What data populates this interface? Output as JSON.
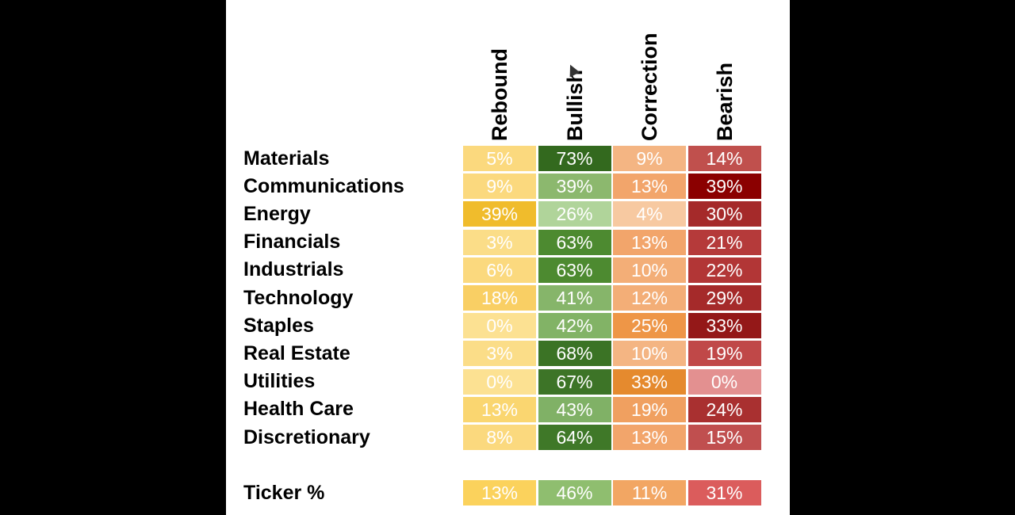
{
  "chart_data": {
    "type": "heatmap",
    "title": "",
    "columns": [
      "Rebound",
      "Bullish",
      "Correction",
      "Bearish"
    ],
    "rows": [
      {
        "label": "Materials",
        "values": [
          "5%",
          "73%",
          "9%",
          "14%"
        ]
      },
      {
        "label": "Communications",
        "values": [
          "9%",
          "39%",
          "13%",
          "39%"
        ]
      },
      {
        "label": "Energy",
        "values": [
          "39%",
          "26%",
          "4%",
          "30%"
        ]
      },
      {
        "label": "Financials",
        "values": [
          "3%",
          "63%",
          "13%",
          "21%"
        ]
      },
      {
        "label": "Industrials",
        "values": [
          "6%",
          "63%",
          "10%",
          "22%"
        ]
      },
      {
        "label": "Technology",
        "values": [
          "18%",
          "41%",
          "12%",
          "29%"
        ]
      },
      {
        "label": "Staples",
        "values": [
          "0%",
          "42%",
          "25%",
          "33%"
        ]
      },
      {
        "label": "Real Estate",
        "values": [
          "3%",
          "68%",
          "10%",
          "19%"
        ]
      },
      {
        "label": "Utilities",
        "values": [
          "0%",
          "67%",
          "33%",
          "0%"
        ]
      },
      {
        "label": "Health Care",
        "values": [
          "13%",
          "43%",
          "19%",
          "24%"
        ]
      },
      {
        "label": "Discretionary",
        "values": [
          "8%",
          "64%",
          "13%",
          "15%"
        ]
      }
    ],
    "summary_rows": [
      {
        "label": "Ticker %",
        "values": [
          "13%",
          "46%",
          "11%",
          "31%"
        ]
      }
    ],
    "cell_colors": [
      [
        "#fbd97e",
        "#33691e",
        "#f4b583",
        "#c0504d"
      ],
      [
        "#fbd97e",
        "#8cb86e",
        "#f2a56b",
        "#8b0000"
      ],
      [
        "#f0bc2c",
        "#b0d49a",
        "#f7c9a1",
        "#a52a2a"
      ],
      [
        "#fbdd88",
        "#4d8a30",
        "#f2a56b",
        "#b53a3a"
      ],
      [
        "#fbd97e",
        "#4d8a30",
        "#f3ae77",
        "#b23636"
      ],
      [
        "#f9cf64",
        "#86b56a",
        "#f3ae77",
        "#a52a2a"
      ],
      [
        "#fce192",
        "#82b366",
        "#ee9647",
        "#941818"
      ],
      [
        "#fbdd88",
        "#3b7325",
        "#f4b583",
        "#c04848"
      ],
      [
        "#fce192",
        "#3d7427",
        "#e58a2e",
        "#e39090"
      ],
      [
        "#fad670",
        "#80b166",
        "#f0a060",
        "#a93030"
      ],
      [
        "#fbd97e",
        "#3f7828",
        "#f2a56b",
        "#c04f4f"
      ]
    ],
    "summary_colors": [
      [
        "#fbd25c",
        "#8fbe6f",
        "#f2a663",
        "#db5c5c"
      ]
    ],
    "ylabel": "",
    "xlabel": ""
  }
}
